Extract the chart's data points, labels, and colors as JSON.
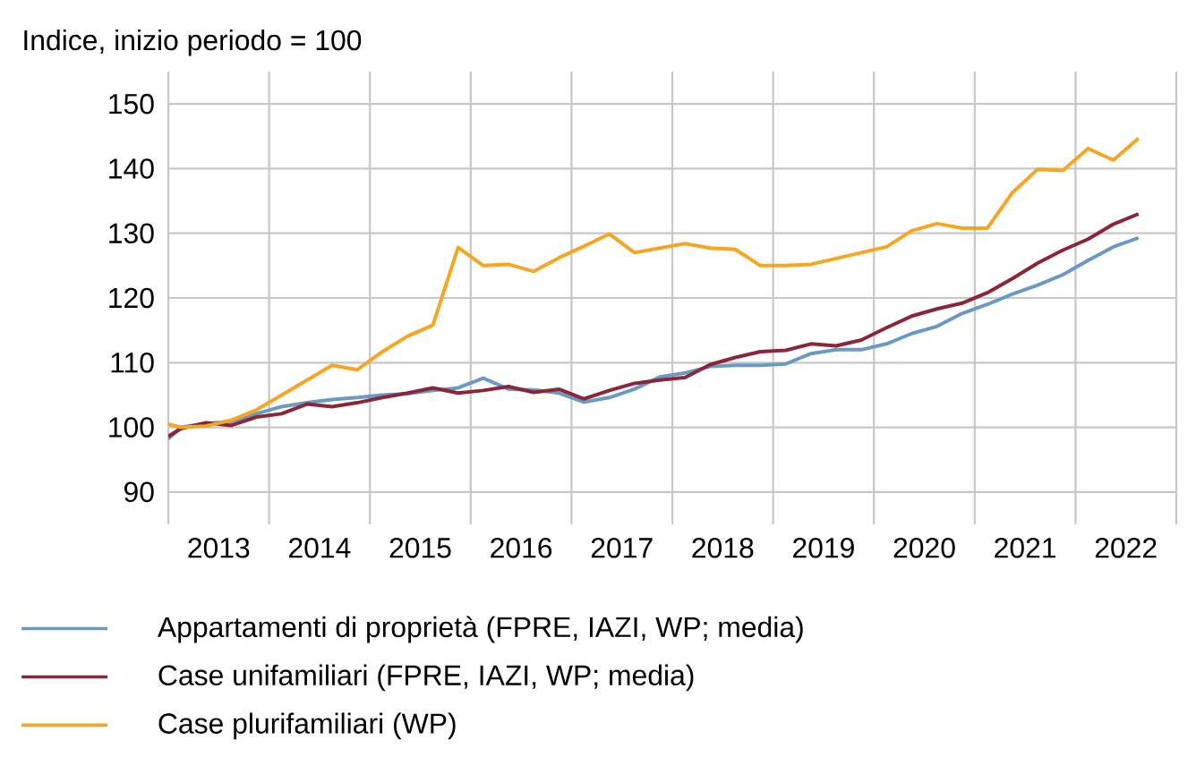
{
  "chart_data": {
    "type": "line",
    "ylabel": "Indice, inizio periodo = 100",
    "x": [
      2013,
      2013.125,
      2013.375,
      2013.625,
      2013.875,
      2014.125,
      2014.375,
      2014.625,
      2014.875,
      2015.125,
      2015.375,
      2015.625,
      2015.875,
      2016.125,
      2016.375,
      2016.625,
      2016.875,
      2017.125,
      2017.375,
      2017.625,
      2017.875,
      2018.125,
      2018.375,
      2018.625,
      2018.875,
      2019.125,
      2019.375,
      2019.625,
      2019.875,
      2020.125,
      2020.375,
      2020.625,
      2020.875,
      2021.125,
      2021.375,
      2021.625,
      2021.875,
      2022.125,
      2022.375,
      2022.625
    ],
    "series": [
      {
        "name": "Appartamenti di proprietà (FPRE, IAZI, WP; media)",
        "color": "#6a9ac4",
        "values": [
          98.2,
          100,
          100.6,
          100.9,
          102.1,
          103.2,
          103.8,
          104.3,
          104.6,
          105,
          105.2,
          105.7,
          106.1,
          107.6,
          105.9,
          105.8,
          105.3,
          103.9,
          104.6,
          105.9,
          107.8,
          108.4,
          109.4,
          109.6,
          109.6,
          109.8,
          111.4,
          112,
          112,
          112.9,
          114.5,
          115.6,
          117.6,
          119,
          120.6,
          122,
          123.6,
          125.8,
          127.9,
          129.3
        ]
      },
      {
        "name": "Case unifamiliari (FPRE, IAZI, WP; media)",
        "color": "#8b2639",
        "values": [
          98.6,
          99.8,
          100.7,
          100.3,
          101.6,
          102.1,
          103.6,
          103.2,
          103.8,
          104.6,
          105.3,
          106.1,
          105.3,
          105.7,
          106.3,
          105.4,
          105.9,
          104.4,
          105.7,
          106.8,
          107.3,
          107.7,
          109.7,
          110.8,
          111.7,
          111.9,
          112.9,
          112.6,
          113.5,
          115.4,
          117.2,
          118.3,
          119.2,
          120.8,
          123,
          125.4,
          127.4,
          129.1,
          131.4,
          133
        ]
      },
      {
        "name": "Case plurifamiliari (WP)",
        "color": "#f5a623",
        "values": [
          100.5,
          100,
          100.2,
          101.1,
          102.7,
          105,
          107.3,
          109.6,
          108.9,
          111.7,
          114.1,
          115.8,
          127.8,
          125,
          125.2,
          124.1,
          126.2,
          128,
          129.9,
          127,
          127.7,
          128.4,
          127.7,
          127.5,
          125,
          125,
          125.2,
          126.1,
          127,
          127.9,
          130.4,
          131.5,
          130.8,
          130.8,
          136.3,
          139.9,
          139.7,
          143.1,
          141.3,
          144.7
        ]
      }
    ],
    "xlim": [
      2013,
      2023
    ],
    "xticks": [
      {
        "value": 2013,
        "label": null
      },
      {
        "value": 2013.5,
        "label": "2013"
      },
      {
        "value": 2014,
        "label": null
      },
      {
        "value": 2014.5,
        "label": "2014"
      },
      {
        "value": 2015,
        "label": null
      },
      {
        "value": 2015.5,
        "label": "2015"
      },
      {
        "value": 2016,
        "label": null
      },
      {
        "value": 2016.5,
        "label": "2016"
      },
      {
        "value": 2017,
        "label": null
      },
      {
        "value": 2017.5,
        "label": "2017"
      },
      {
        "value": 2018,
        "label": null
      },
      {
        "value": 2018.5,
        "label": "2018"
      },
      {
        "value": 2019,
        "label": null
      },
      {
        "value": 2019.5,
        "label": "2019"
      },
      {
        "value": 2020,
        "label": null
      },
      {
        "value": 2020.5,
        "label": "2020"
      },
      {
        "value": 2021,
        "label": null
      },
      {
        "value": 2021.5,
        "label": "2021"
      },
      {
        "value": 2022,
        "label": null
      },
      {
        "value": 2022.5,
        "label": "2022"
      },
      {
        "value": 2023,
        "label": null
      }
    ],
    "ylim": [
      85,
      155
    ],
    "yticks": [
      90,
      100,
      110,
      120,
      130,
      140,
      150
    ],
    "grid": true,
    "legend": "bottom",
    "marker": "none",
    "line_style": "solid"
  }
}
